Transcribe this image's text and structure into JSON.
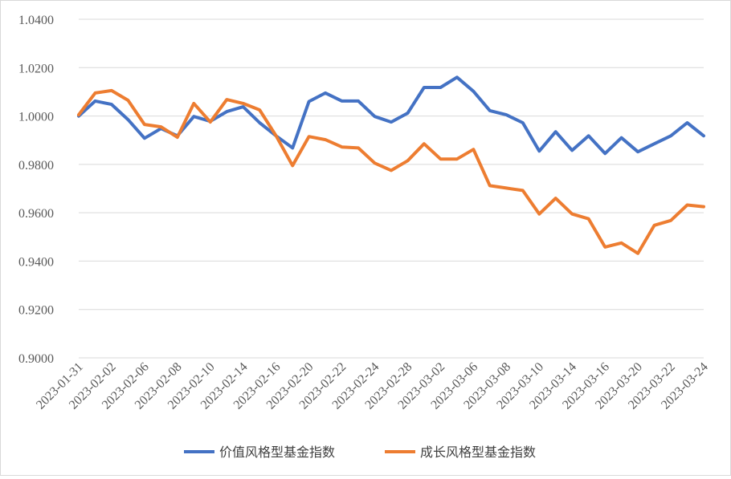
{
  "chart_data": {
    "type": "line",
    "title": "",
    "xlabel": "",
    "ylabel": "",
    "ylim": [
      0.9,
      1.04
    ],
    "yticks": [
      "0.9000",
      "0.9200",
      "0.9400",
      "0.9600",
      "0.9800",
      "1.0000",
      "1.0200",
      "1.0400"
    ],
    "grid": "horizontal",
    "legend": "bottom",
    "x": [
      "2023-01-31",
      "2023-02-01",
      "2023-02-02",
      "2023-02-03",
      "2023-02-06",
      "2023-02-07",
      "2023-02-08",
      "2023-02-09",
      "2023-02-10",
      "2023-02-13",
      "2023-02-14",
      "2023-02-15",
      "2023-02-16",
      "2023-02-17",
      "2023-02-20",
      "2023-02-21",
      "2023-02-22",
      "2023-02-23",
      "2023-02-24",
      "2023-02-27",
      "2023-02-28",
      "2023-03-01",
      "2023-03-02",
      "2023-03-03",
      "2023-03-06",
      "2023-03-07",
      "2023-03-08",
      "2023-03-09",
      "2023-03-10",
      "2023-03-13",
      "2023-03-14",
      "2023-03-15",
      "2023-03-16",
      "2023-03-17",
      "2023-03-20",
      "2023-03-21",
      "2023-03-22",
      "2023-03-23",
      "2023-03-24"
    ],
    "xtick_labels": [
      "2023-01-31",
      "2023-02-02",
      "2023-02-06",
      "2023-02-08",
      "2023-02-10",
      "2023-02-14",
      "2023-02-16",
      "2023-02-20",
      "2023-02-22",
      "2023-02-24",
      "2023-02-28",
      "2023-03-02",
      "2023-03-06",
      "2023-03-08",
      "2023-03-10",
      "2023-03-14",
      "2023-03-16",
      "2023-03-20",
      "2023-03-22",
      "2023-03-24"
    ],
    "series": [
      {
        "name": "价值风格型基金指数",
        "color": "#4472c4",
        "values": [
          1.0,
          1.0062,
          1.0048,
          0.9985,
          0.9908,
          0.9948,
          0.9918,
          0.9998,
          0.9978,
          1.0018,
          1.0038,
          0.9972,
          0.9918,
          0.9868,
          1.006,
          1.0095,
          1.0062,
          1.0062,
          0.9998,
          0.9975,
          1.0012,
          1.0118,
          1.0118,
          1.016,
          1.0102,
          1.0022,
          1.0005,
          0.9972,
          0.9855,
          0.9935,
          0.9858,
          0.9918,
          0.9845,
          0.991,
          0.9852,
          0.9885,
          0.9918,
          0.9972,
          0.9918
        ]
      },
      {
        "name": "成长风格型基金指数",
        "color": "#ed7d31",
        "values": [
          1.0005,
          1.0095,
          1.0105,
          1.0065,
          0.9965,
          0.9955,
          0.9912,
          1.0052,
          0.9975,
          1.0068,
          1.0052,
          1.0025,
          0.9918,
          0.9795,
          0.9915,
          0.9902,
          0.9872,
          0.9868,
          0.9805,
          0.9775,
          0.9815,
          0.9885,
          0.9822,
          0.9822,
          0.9862,
          0.9712,
          0.9702,
          0.9692,
          0.9595,
          0.966,
          0.9595,
          0.9575,
          0.9458,
          0.9475,
          0.9432,
          0.9548,
          0.9568,
          0.9632,
          0.9625
        ]
      }
    ]
  }
}
